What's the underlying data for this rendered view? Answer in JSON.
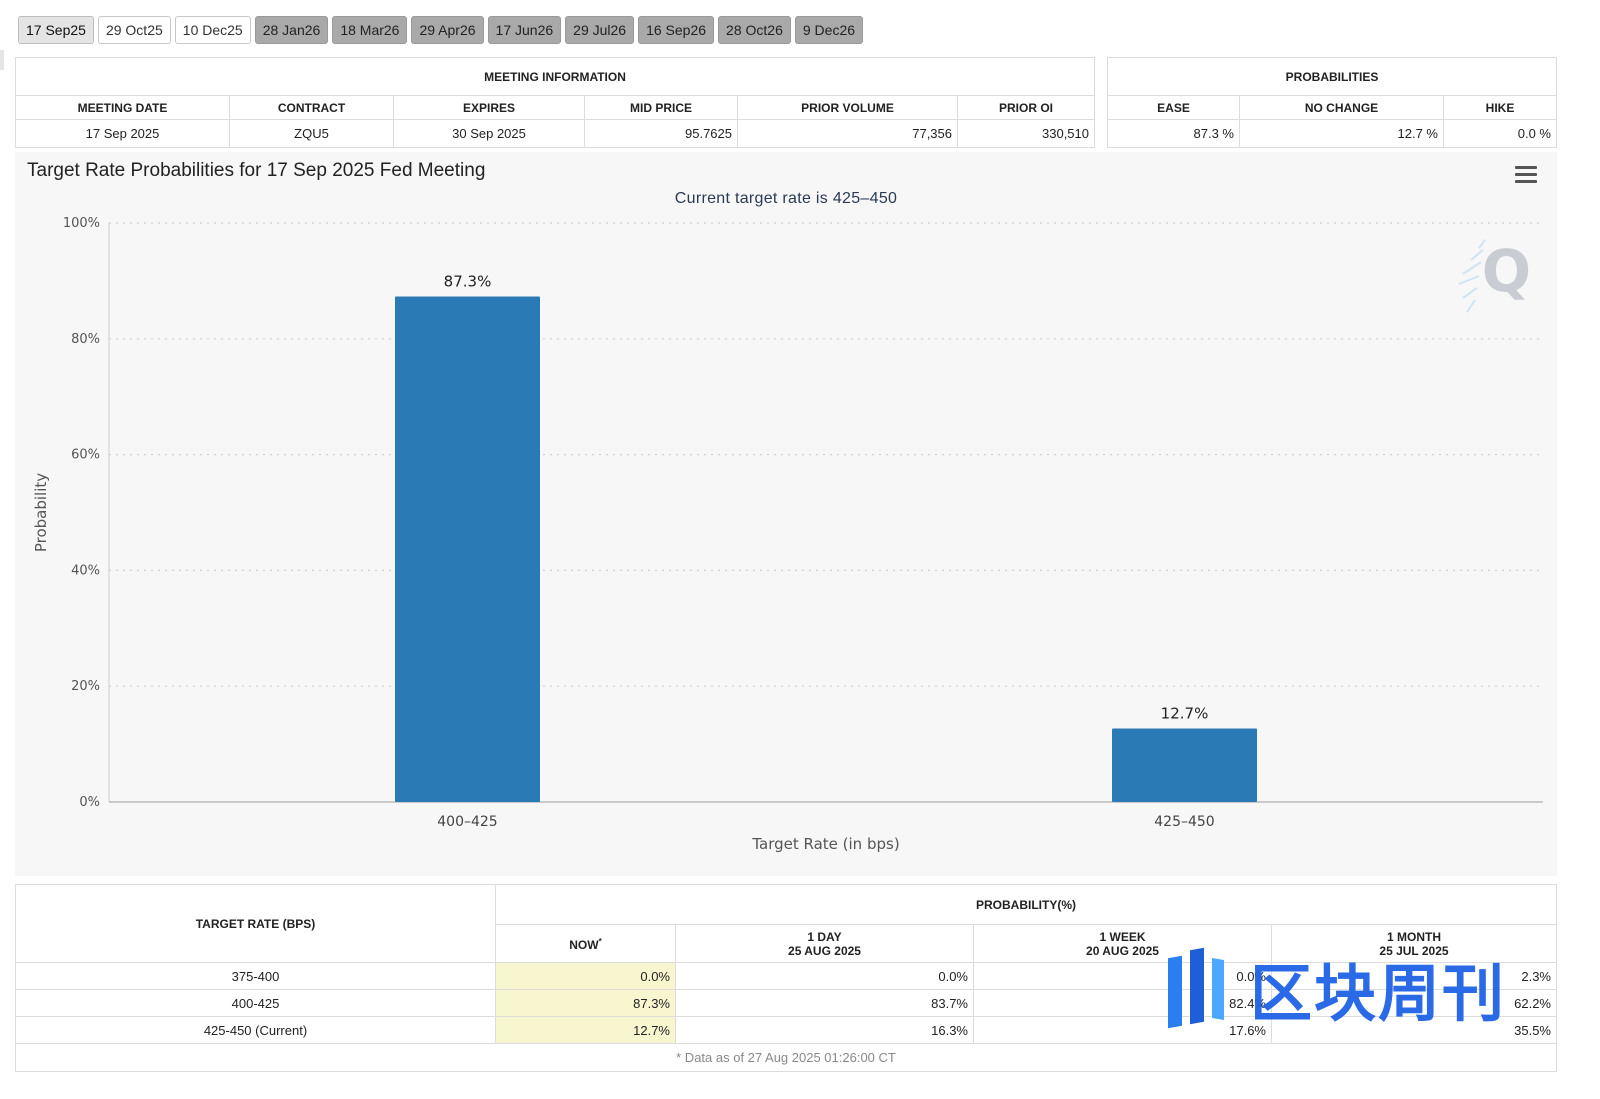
{
  "tabs": [
    {
      "label": "17 Sep25",
      "style": "active"
    },
    {
      "label": "29 Oct25",
      "style": "light"
    },
    {
      "label": "10 Dec25",
      "style": "light"
    },
    {
      "label": "28 Jan26",
      "style": "dark"
    },
    {
      "label": "18 Mar26",
      "style": "dark"
    },
    {
      "label": "29 Apr26",
      "style": "dark"
    },
    {
      "label": "17 Jun26",
      "style": "dark"
    },
    {
      "label": "29 Jul26",
      "style": "dark"
    },
    {
      "label": "16 Sep26",
      "style": "dark"
    },
    {
      "label": "28 Oct26",
      "style": "dark"
    },
    {
      "label": "9 Dec26",
      "style": "dark"
    }
  ],
  "meeting_info": {
    "title": "MEETING INFORMATION",
    "headers": {
      "meeting_date": "MEETING DATE",
      "contract": "CONTRACT",
      "expires": "EXPIRES",
      "mid_price": "MID PRICE",
      "prior_volume": "PRIOR VOLUME",
      "prior_oi": "PRIOR OI"
    },
    "values": {
      "meeting_date": "17 Sep 2025",
      "contract": "ZQU5",
      "expires": "30 Sep 2025",
      "mid_price": "95.7625",
      "prior_volume": "77,356",
      "prior_oi": "330,510"
    }
  },
  "probabilities": {
    "title": "PROBABILITIES",
    "headers": {
      "ease": "EASE",
      "no_change": "NO CHANGE",
      "hike": "HIKE"
    },
    "values": {
      "ease": "87.3 %",
      "no_change": "12.7 %",
      "hike": "0.0 %"
    }
  },
  "chart_data": {
    "type": "bar",
    "title": "Target Rate Probabilities for 17 Sep 2025 Fed Meeting",
    "subtitle": "Current target rate is 425–450",
    "xlabel": "Target Rate (in bps)",
    "ylabel": "Probability",
    "categories": [
      "400–425",
      "425–450"
    ],
    "values": [
      87.3,
      12.7
    ],
    "data_labels": [
      "87.3%",
      "12.7%"
    ],
    "ylim": [
      0,
      100
    ],
    "yticks": [
      0,
      20,
      40,
      60,
      80,
      100
    ],
    "ytick_labels": [
      "0%",
      "20%",
      "40%",
      "60%",
      "80%",
      "100%"
    ],
    "grid": "horizontal dotted",
    "bar_color": "#2a7ab5"
  },
  "rate_table": {
    "col_target": "TARGET RATE (BPS)",
    "col_group": "PROBABILITY(%)",
    "col_now": "NOW",
    "now_marker": "*",
    "col_1day": "1 DAY",
    "col_1day_date": "25 AUG 2025",
    "col_1week": "1 WEEK",
    "col_1week_date": "20 AUG 2025",
    "col_1month": "1 MONTH",
    "col_1month_date": "25 JUL 2025",
    "rows": [
      {
        "rate": "375-400",
        "now": "0.0%",
        "day": "0.0%",
        "week": "0.0%",
        "month": "2.3%"
      },
      {
        "rate": "400-425",
        "now": "87.3%",
        "day": "83.7%",
        "week": "82.4%",
        "month": "62.2%"
      },
      {
        "rate": "425-450 (Current)",
        "now": "12.7%",
        "day": "16.3%",
        "week": "17.6%",
        "month": "35.5%"
      }
    ],
    "footnote": "* Data as of 27 Aug 2025 01:26:00 CT"
  },
  "watermark": {
    "text": "区块周刊",
    "color": "#1f63e6"
  }
}
